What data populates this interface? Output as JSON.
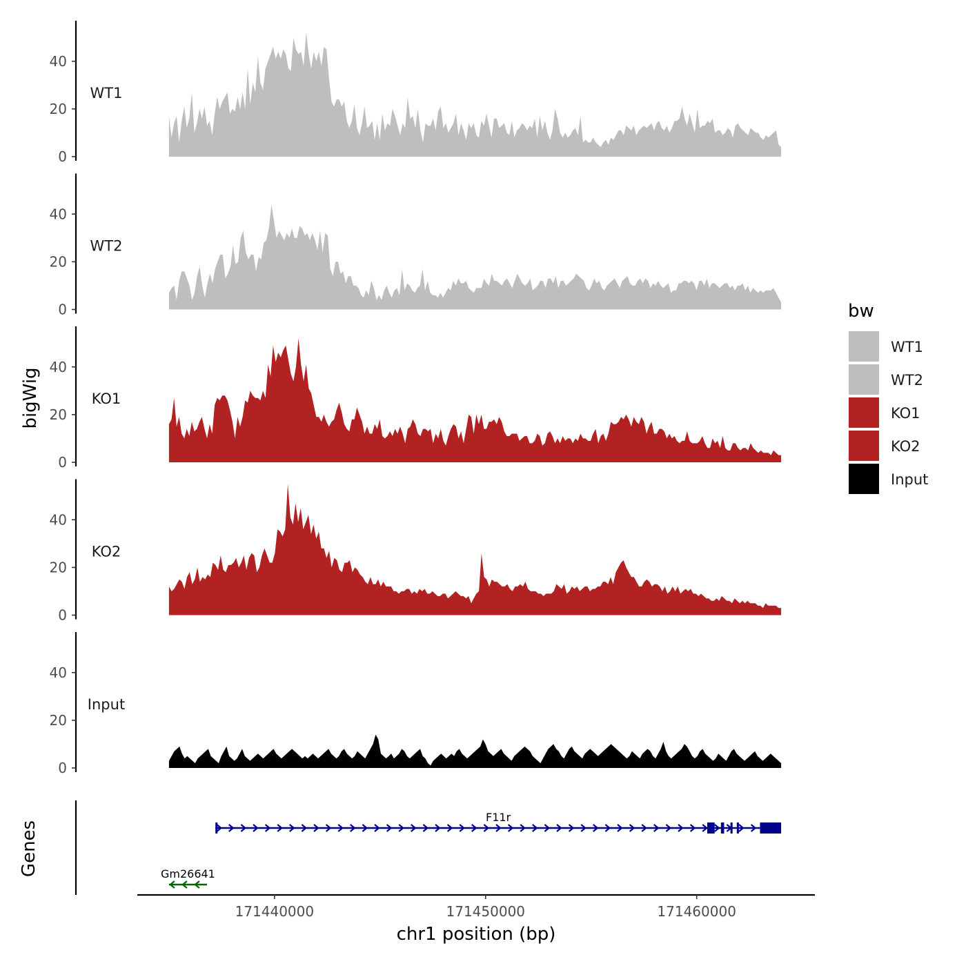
{
  "chart_data": {
    "type": "area",
    "ylabel": "bigWig",
    "xlabel": "chr1 position (bp)",
    "xlim": [
      171433500,
      171465600
    ],
    "region": [
      171435000,
      171464000
    ],
    "ylim": [
      0,
      57
    ],
    "y_ticks": [
      0,
      20,
      40
    ],
    "y_tick_labels": [
      "0",
      "20",
      "40"
    ],
    "x_ticks": [
      171440000,
      171450000,
      171460000
    ],
    "x_tick_labels": [
      "171440000",
      "171450000",
      "171460000"
    ],
    "legend": {
      "title": "bw",
      "position": "right",
      "entries": [
        {
          "label": "WT1",
          "color": "#bebebe"
        },
        {
          "label": "WT2",
          "color": "#bebebe"
        },
        {
          "label": "KO1",
          "color": "#b22222"
        },
        {
          "label": "KO2",
          "color": "#b22222"
        },
        {
          "label": "Input",
          "color": "#000000"
        }
      ]
    },
    "series": [
      {
        "name": "WT1",
        "color": "#bebebe",
        "x_start": 171435000,
        "x_end": 171464000,
        "values": [
          17,
          8,
          14,
          17,
          6,
          15,
          21,
          12,
          16,
          27,
          10,
          14,
          20,
          16,
          21,
          13,
          15,
          9,
          18,
          25,
          20,
          23,
          25,
          27,
          18,
          20,
          19,
          25,
          20,
          27,
          20,
          37,
          22,
          31,
          27,
          42,
          31,
          28,
          37,
          40,
          43,
          46,
          41,
          44,
          41,
          45,
          43,
          37,
          36,
          50,
          45,
          43,
          44,
          38,
          52,
          43,
          37,
          44,
          40,
          44,
          38,
          46,
          45,
          33,
          23,
          21,
          24,
          24,
          21,
          23,
          15,
          12,
          15,
          22,
          12,
          9,
          14,
          21,
          12,
          13,
          15,
          7,
          14,
          7,
          18,
          11,
          14,
          13,
          20,
          17,
          13,
          9,
          14,
          12,
          25,
          16,
          17,
          12,
          20,
          11,
          6,
          14,
          13,
          13,
          16,
          11,
          19,
          21,
          12,
          14,
          10,
          12,
          14,
          18,
          9,
          14,
          11,
          7,
          14,
          12,
          14,
          9,
          8,
          15,
          13,
          18,
          13,
          8,
          16,
          16,
          12,
          13,
          14,
          10,
          9,
          15,
          8,
          11,
          12,
          14,
          13,
          11,
          13,
          12,
          16,
          8,
          17,
          11,
          15,
          10,
          7,
          11,
          20,
          16,
          10,
          8,
          10,
          8,
          9,
          11,
          12,
          9,
          17,
          6,
          7,
          6,
          6,
          8,
          6,
          5,
          4,
          6,
          7,
          5,
          8,
          7,
          9,
          11,
          11,
          9,
          13,
          12,
          11,
          13,
          9,
          11,
          12,
          13,
          12,
          13,
          14,
          11,
          14,
          15,
          12,
          11,
          13,
          10,
          12,
          15,
          15,
          16,
          21,
          16,
          13,
          18,
          14,
          10,
          20,
          12,
          13,
          13,
          15,
          14,
          16,
          10,
          11,
          11,
          9,
          10,
          12,
          11,
          8,
          13,
          14,
          12,
          11,
          10,
          9,
          12,
          11,
          10,
          10,
          8,
          7,
          9,
          8,
          9,
          10,
          11,
          5,
          4
        ]
      },
      {
        "name": "WT2",
        "color": "#bebebe",
        "x_start": 171435000,
        "x_end": 171464000,
        "values": [
          7,
          9,
          10,
          4,
          12,
          16,
          16,
          13,
          10,
          4,
          7,
          14,
          18,
          10,
          5,
          11,
          15,
          11,
          17,
          20,
          23,
          23,
          13,
          15,
          18,
          27,
          19,
          20,
          30,
          33,
          24,
          21,
          23,
          23,
          16,
          22,
          21,
          28,
          29,
          34,
          44,
          37,
          30,
          33,
          31,
          29,
          32,
          30,
          34,
          30,
          30,
          35,
          34,
          31,
          32,
          29,
          32,
          29,
          25,
          33,
          24,
          32,
          31,
          17,
          14,
          20,
          20,
          15,
          16,
          11,
          14,
          14,
          10,
          10,
          9,
          6,
          5,
          8,
          6,
          12,
          9,
          4,
          6,
          4,
          8,
          10,
          7,
          5,
          8,
          9,
          6,
          17,
          8,
          11,
          10,
          8,
          7,
          9,
          10,
          17,
          8,
          12,
          7,
          6,
          6,
          5,
          7,
          5,
          7,
          9,
          8,
          12,
          10,
          13,
          11,
          11,
          12,
          9,
          8,
          7,
          9,
          9,
          9,
          13,
          11,
          10,
          15,
          12,
          12,
          11,
          10,
          12,
          13,
          11,
          9,
          12,
          15,
          13,
          11,
          10,
          11,
          13,
          8,
          9,
          10,
          12,
          12,
          9,
          13,
          13,
          11,
          14,
          9,
          12,
          12,
          10,
          11,
          12,
          13,
          15,
          14,
          13,
          12,
          9,
          8,
          10,
          13,
          11,
          12,
          9,
          8,
          10,
          11,
          12,
          13,
          11,
          9,
          12,
          13,
          14,
          11,
          10,
          10,
          12,
          13,
          11,
          13,
          12,
          9,
          11,
          10,
          12,
          10,
          9,
          10,
          11,
          7,
          8,
          8,
          11,
          11,
          12,
          12,
          11,
          12,
          11,
          8,
          12,
          12,
          10,
          13,
          9,
          11,
          11,
          10,
          9,
          10,
          11,
          11,
          9,
          10,
          8,
          10,
          10,
          11,
          8,
          10,
          7,
          9,
          8,
          7,
          8,
          7,
          8,
          8,
          8,
          9,
          7,
          5,
          3
        ]
      },
      {
        "name": "KO1",
        "color": "#b22222",
        "x_start": 171435000,
        "x_end": 171464000,
        "values": [
          16,
          18,
          27,
          15,
          19,
          12,
          10,
          14,
          11,
          17,
          13,
          14,
          17,
          19,
          14,
          10,
          16,
          12,
          24,
          27,
          26,
          28,
          28,
          26,
          22,
          17,
          10,
          19,
          15,
          19,
          26,
          25,
          30,
          28,
          27,
          27,
          26,
          30,
          27,
          41,
          36,
          49,
          42,
          46,
          44,
          47,
          49,
          43,
          37,
          34,
          40,
          52,
          41,
          34,
          41,
          31,
          29,
          24,
          19,
          19,
          17,
          20,
          17,
          15,
          17,
          18,
          22,
          25,
          21,
          16,
          14,
          13,
          18,
          18,
          23,
          20,
          17,
          12,
          15,
          12,
          12,
          16,
          14,
          18,
          11,
          10,
          11,
          13,
          11,
          14,
          12,
          15,
          12,
          8,
          14,
          15,
          18,
          16,
          12,
          11,
          14,
          14,
          13,
          14,
          8,
          12,
          10,
          14,
          9,
          7,
          11,
          14,
          16,
          15,
          10,
          13,
          8,
          14,
          20,
          19,
          12,
          20,
          16,
          20,
          14,
          14,
          17,
          17,
          18,
          16,
          19,
          17,
          13,
          11,
          11,
          12,
          12,
          12,
          9,
          10,
          11,
          11,
          8,
          8,
          9,
          12,
          11,
          7,
          8,
          12,
          13,
          11,
          8,
          10,
          8,
          11,
          9,
          10,
          10,
          8,
          10,
          9,
          12,
          10,
          10,
          9,
          9,
          12,
          14,
          8,
          11,
          12,
          9,
          12,
          17,
          16,
          16,
          17,
          19,
          18,
          20,
          18,
          15,
          19,
          17,
          16,
          19,
          17,
          12,
          15,
          17,
          12,
          12,
          14,
          14,
          13,
          10,
          12,
          10,
          11,
          9,
          8,
          9,
          9,
          13,
          9,
          8,
          8,
          8,
          9,
          11,
          8,
          6,
          6,
          10,
          8,
          9,
          6,
          11,
          6,
          5,
          5,
          8,
          8,
          6,
          5,
          6,
          6,
          5,
          8,
          6,
          5,
          4,
          5,
          4,
          4,
          4,
          3,
          5,
          4,
          3,
          3
        ]
      },
      {
        "name": "KO2",
        "color": "#b22222",
        "x_start": 171435000,
        "x_end": 171464000,
        "values": [
          12,
          10,
          11,
          13,
          15,
          14,
          11,
          16,
          18,
          13,
          15,
          20,
          14,
          16,
          15,
          17,
          16,
          22,
          21,
          19,
          25,
          19,
          18,
          21,
          21,
          22,
          24,
          20,
          22,
          25,
          19,
          24,
          26,
          25,
          18,
          20,
          25,
          28,
          25,
          22,
          22,
          26,
          36,
          35,
          33,
          36,
          55,
          41,
          38,
          47,
          39,
          45,
          36,
          39,
          42,
          34,
          38,
          32,
          35,
          28,
          28,
          24,
          27,
          20,
          24,
          23,
          19,
          18,
          22,
          22,
          23,
          18,
          20,
          19,
          17,
          16,
          14,
          13,
          16,
          13,
          13,
          15,
          12,
          14,
          12,
          12,
          12,
          10,
          10,
          9,
          10,
          10,
          11,
          11,
          9,
          10,
          9,
          11,
          10,
          11,
          9,
          9,
          10,
          9,
          8,
          8,
          9,
          9,
          7,
          8,
          9,
          10,
          9,
          8,
          8,
          7,
          8,
          5,
          7,
          9,
          10,
          26,
          16,
          15,
          12,
          15,
          14,
          14,
          13,
          12,
          12,
          13,
          11,
          10,
          12,
          12,
          13,
          12,
          14,
          11,
          10,
          10,
          10,
          9,
          9,
          8,
          9,
          9,
          9,
          10,
          13,
          12,
          11,
          13,
          9,
          10,
          12,
          11,
          12,
          10,
          11,
          12,
          12,
          10,
          11,
          11,
          12,
          12,
          14,
          14,
          13,
          16,
          13,
          18,
          20,
          22,
          23,
          20,
          18,
          16,
          16,
          14,
          12,
          12,
          14,
          15,
          14,
          12,
          13,
          13,
          12,
          10,
          12,
          9,
          10,
          12,
          10,
          12,
          9,
          10,
          11,
          10,
          11,
          9,
          9,
          8,
          9,
          8,
          7,
          7,
          6,
          6,
          7,
          6,
          8,
          7,
          6,
          6,
          5,
          7,
          6,
          5,
          6,
          5,
          6,
          5,
          5,
          5,
          4,
          4,
          3,
          5,
          4,
          4,
          4,
          4,
          3,
          3
        ]
      },
      {
        "name": "Input",
        "color": "#000000",
        "x_start": 171435000,
        "x_end": 171464000,
        "values": [
          3,
          5,
          7,
          8,
          9,
          6,
          4,
          5,
          4,
          3,
          2,
          4,
          5,
          6,
          7,
          8,
          5,
          4,
          3,
          2,
          5,
          7,
          9,
          5,
          4,
          3,
          4,
          6,
          8,
          5,
          4,
          3,
          4,
          5,
          6,
          5,
          4,
          5,
          6,
          7,
          8,
          6,
          5,
          4,
          5,
          6,
          7,
          8,
          7,
          6,
          5,
          4,
          5,
          4,
          5,
          6,
          5,
          4,
          5,
          6,
          7,
          8,
          6,
          5,
          4,
          5,
          7,
          8,
          6,
          5,
          4,
          5,
          7,
          6,
          5,
          4,
          6,
          8,
          10,
          14,
          12,
          6,
          5,
          4,
          5,
          6,
          4,
          5,
          6,
          8,
          7,
          5,
          4,
          5,
          6,
          7,
          8,
          5,
          4,
          2,
          1,
          3,
          4,
          5,
          6,
          5,
          4,
          5,
          6,
          5,
          7,
          8,
          6,
          5,
          4,
          5,
          6,
          7,
          8,
          9,
          12,
          10,
          7,
          6,
          5,
          6,
          7,
          8,
          6,
          5,
          4,
          3,
          5,
          6,
          7,
          8,
          9,
          8,
          7,
          5,
          4,
          3,
          2,
          4,
          6,
          8,
          9,
          10,
          8,
          7,
          5,
          4,
          6,
          8,
          9,
          7,
          6,
          5,
          4,
          6,
          7,
          8,
          7,
          6,
          5,
          6,
          7,
          8,
          9,
          10,
          9,
          8,
          7,
          6,
          5,
          4,
          5,
          7,
          6,
          5,
          4,
          6,
          7,
          8,
          7,
          5,
          4,
          6,
          8,
          11,
          7,
          5,
          4,
          5,
          6,
          7,
          8,
          10,
          9,
          7,
          5,
          4,
          5,
          7,
          8,
          6,
          5,
          4,
          3,
          4,
          6,
          5,
          4,
          3,
          5,
          7,
          8,
          6,
          5,
          4,
          3,
          4,
          5,
          6,
          7,
          5,
          4,
          3,
          4,
          5,
          6,
          5,
          4,
          3,
          2
        ]
      }
    ],
    "genes": [
      {
        "name": "F11r",
        "strand": "+",
        "color": "#00008b",
        "tx_start": 171437200,
        "tx_end": 171464000,
        "exons": [
          [
            171437200,
            171437300
          ],
          [
            171460500,
            171460850
          ],
          [
            171461150,
            171461300
          ],
          [
            171461600,
            171461700
          ],
          [
            171461900,
            171462000
          ],
          [
            171463000,
            171464000
          ]
        ]
      },
      {
        "name": "Gm26641",
        "strand": "-",
        "color": "#006400",
        "tx_start": 171435000,
        "tx_end": 171436800,
        "exons": []
      }
    ]
  }
}
